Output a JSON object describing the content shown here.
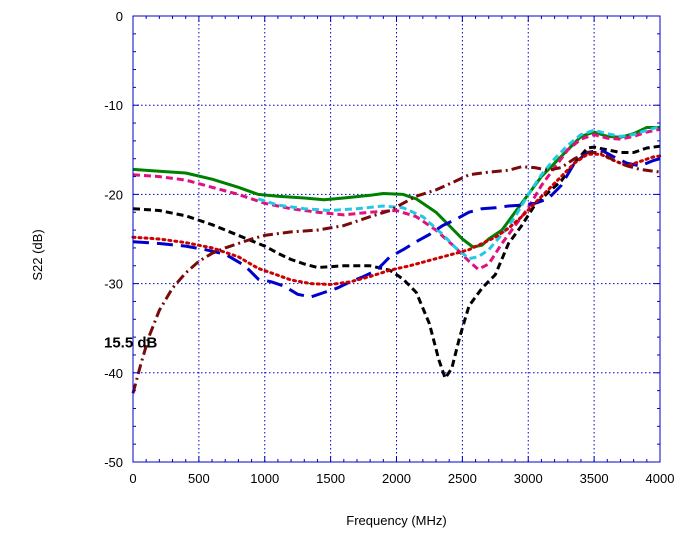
{
  "chart_data": {
    "type": "line",
    "title": "",
    "xlabel": "Frequency (MHz)",
    "ylabel": "S22 (dB)",
    "xlim": [
      0,
      4000
    ],
    "ylim": [
      -50,
      0
    ],
    "x_ticks": [
      0,
      500,
      1000,
      1500,
      2000,
      2500,
      3000,
      3500,
      4000
    ],
    "y_ticks": [
      0,
      -10,
      -20,
      -30,
      -40,
      -50
    ],
    "x_tick_labels": [
      "0",
      "500",
      "1000",
      "1500",
      "2000",
      "2500",
      "3000",
      "3500",
      "4000"
    ],
    "y_tick_labels": [
      "0",
      "-10",
      "-20",
      "-30",
      "-40",
      "-50"
    ],
    "grid": true,
    "grid_color": "#0000cc",
    "frame_color": "#0000cc",
    "annotations": [
      {
        "text": "15.5 dB",
        "x": 220,
        "y": -36.5
      }
    ],
    "series": [
      {
        "color": "#008000",
        "style": "solid",
        "points": [
          [
            0,
            -17.2
          ],
          [
            200,
            -17.4
          ],
          [
            400,
            -17.6
          ],
          [
            600,
            -18.3
          ],
          [
            800,
            -19.2
          ],
          [
            950,
            -20.0
          ],
          [
            1100,
            -20.2
          ],
          [
            1300,
            -20.4
          ],
          [
            1450,
            -20.6
          ],
          [
            1600,
            -20.4
          ],
          [
            1800,
            -20.1
          ],
          [
            1900,
            -19.9
          ],
          [
            2050,
            -20.0
          ],
          [
            2150,
            -20.5
          ],
          [
            2300,
            -22.0
          ],
          [
            2400,
            -23.5
          ],
          [
            2500,
            -25.0
          ],
          [
            2580,
            -25.9
          ],
          [
            2650,
            -25.7
          ],
          [
            2700,
            -25.0
          ],
          [
            2800,
            -24.0
          ],
          [
            2900,
            -22.0
          ],
          [
            3000,
            -20.0
          ],
          [
            3100,
            -18.0
          ],
          [
            3200,
            -16.5
          ],
          [
            3300,
            -15.0
          ],
          [
            3400,
            -13.5
          ],
          [
            3500,
            -13.0
          ],
          [
            3600,
            -13.5
          ],
          [
            3700,
            -13.6
          ],
          [
            3800,
            -13.2
          ],
          [
            3900,
            -12.5
          ],
          [
            4000,
            -12.5
          ]
        ]
      },
      {
        "color": "#e0117f",
        "style": "dashed",
        "points": [
          [
            0,
            -17.8
          ],
          [
            200,
            -18.0
          ],
          [
            400,
            -18.4
          ],
          [
            600,
            -19.2
          ],
          [
            800,
            -20.0
          ],
          [
            1000,
            -21.0
          ],
          [
            1200,
            -21.6
          ],
          [
            1400,
            -22.0
          ],
          [
            1600,
            -22.3
          ],
          [
            1800,
            -22.0
          ],
          [
            2000,
            -21.8
          ],
          [
            2150,
            -22.5
          ],
          [
            2300,
            -24.0
          ],
          [
            2450,
            -26.0
          ],
          [
            2550,
            -27.5
          ],
          [
            2620,
            -28.4
          ],
          [
            2700,
            -27.8
          ],
          [
            2800,
            -25.5
          ],
          [
            2900,
            -23.5
          ],
          [
            3000,
            -21.5
          ],
          [
            3100,
            -19.0
          ],
          [
            3200,
            -17.0
          ],
          [
            3300,
            -15.0
          ],
          [
            3400,
            -13.8
          ],
          [
            3500,
            -13.3
          ],
          [
            3600,
            -13.7
          ],
          [
            3700,
            -13.8
          ],
          [
            3800,
            -13.5
          ],
          [
            3900,
            -13.0
          ],
          [
            4000,
            -12.7
          ]
        ]
      },
      {
        "color": "#22c8e6",
        "style": "dashed",
        "points": [
          [
            950,
            -20.5
          ],
          [
            1100,
            -21.2
          ],
          [
            1300,
            -21.6
          ],
          [
            1500,
            -21.8
          ],
          [
            1700,
            -21.6
          ],
          [
            1900,
            -21.3
          ],
          [
            2050,
            -21.5
          ],
          [
            2200,
            -22.5
          ],
          [
            2350,
            -24.5
          ],
          [
            2450,
            -26.0
          ],
          [
            2550,
            -27.2
          ],
          [
            2620,
            -27.0
          ],
          [
            2700,
            -26.2
          ],
          [
            2800,
            -24.5
          ],
          [
            2900,
            -22.5
          ],
          [
            3000,
            -20.0
          ],
          [
            3100,
            -17.8
          ],
          [
            3200,
            -16.0
          ],
          [
            3300,
            -14.5
          ],
          [
            3400,
            -13.3
          ],
          [
            3500,
            -12.8
          ],
          [
            3600,
            -13.2
          ],
          [
            3700,
            -13.5
          ],
          [
            3800,
            -13.3
          ],
          [
            3900,
            -12.8
          ],
          [
            4000,
            -12.4
          ]
        ]
      },
      {
        "color": "#000000",
        "style": "dashed",
        "points": [
          [
            0,
            -21.6
          ],
          [
            200,
            -21.8
          ],
          [
            400,
            -22.4
          ],
          [
            600,
            -23.4
          ],
          [
            800,
            -24.6
          ],
          [
            900,
            -25.2
          ],
          [
            1000,
            -25.8
          ],
          [
            1100,
            -26.6
          ],
          [
            1200,
            -27.3
          ],
          [
            1300,
            -27.8
          ],
          [
            1400,
            -28.2
          ],
          [
            1600,
            -28.0
          ],
          [
            1800,
            -28.0
          ],
          [
            1950,
            -28.5
          ],
          [
            2050,
            -29.5
          ],
          [
            2150,
            -31.0
          ],
          [
            2250,
            -34.5
          ],
          [
            2320,
            -38.5
          ],
          [
            2370,
            -40.6
          ],
          [
            2420,
            -39.5
          ],
          [
            2480,
            -36.0
          ],
          [
            2550,
            -32.5
          ],
          [
            2650,
            -30.5
          ],
          [
            2750,
            -29.0
          ],
          [
            2850,
            -25.5
          ],
          [
            2950,
            -23.5
          ],
          [
            3050,
            -21.2
          ],
          [
            3150,
            -19.8
          ],
          [
            3250,
            -18.5
          ],
          [
            3350,
            -16.5
          ],
          [
            3450,
            -14.8
          ],
          [
            3500,
            -14.7
          ],
          [
            3600,
            -15.0
          ],
          [
            3700,
            -15.3
          ],
          [
            3800,
            -15.3
          ],
          [
            3900,
            -14.8
          ],
          [
            4000,
            -14.6
          ]
        ]
      },
      {
        "color": "#0000cc",
        "style": "longdash",
        "points": [
          [
            0,
            -25.3
          ],
          [
            200,
            -25.5
          ],
          [
            400,
            -25.8
          ],
          [
            550,
            -26.2
          ],
          [
            700,
            -26.7
          ],
          [
            850,
            -28.0
          ],
          [
            950,
            -29.5
          ],
          [
            1050,
            -29.8
          ],
          [
            1150,
            -30.3
          ],
          [
            1250,
            -31.2
          ],
          [
            1350,
            -31.5
          ],
          [
            1450,
            -31.0
          ],
          [
            1550,
            -30.5
          ],
          [
            1650,
            -29.8
          ],
          [
            1750,
            -29.2
          ],
          [
            1850,
            -28.5
          ],
          [
            1950,
            -27.0
          ],
          [
            2050,
            -26.2
          ],
          [
            2150,
            -25.3
          ],
          [
            2250,
            -24.5
          ],
          [
            2350,
            -23.5
          ],
          [
            2450,
            -22.8
          ],
          [
            2550,
            -22.0
          ],
          [
            2650,
            -21.6
          ],
          [
            2750,
            -21.5
          ],
          [
            2850,
            -21.3
          ],
          [
            2950,
            -21.2
          ],
          [
            3050,
            -21.0
          ],
          [
            3150,
            -20.5
          ],
          [
            3250,
            -19.0
          ],
          [
            3350,
            -16.5
          ],
          [
            3450,
            -15.3
          ],
          [
            3550,
            -15.0
          ],
          [
            3650,
            -15.8
          ],
          [
            3750,
            -16.5
          ],
          [
            3850,
            -16.8
          ],
          [
            3950,
            -16.2
          ],
          [
            4000,
            -16.0
          ]
        ]
      },
      {
        "color": "#cc0000",
        "style": "dotted",
        "points": [
          [
            0,
            -24.8
          ],
          [
            200,
            -25.0
          ],
          [
            400,
            -25.4
          ],
          [
            600,
            -26.0
          ],
          [
            800,
            -27.0
          ],
          [
            950,
            -28.3
          ],
          [
            1050,
            -28.8
          ],
          [
            1200,
            -29.6
          ],
          [
            1350,
            -30.0
          ],
          [
            1500,
            -30.1
          ],
          [
            1650,
            -29.8
          ],
          [
            1800,
            -29.2
          ],
          [
            1950,
            -28.5
          ],
          [
            2100,
            -28.0
          ],
          [
            2250,
            -27.4
          ],
          [
            2400,
            -26.8
          ],
          [
            2550,
            -26.2
          ],
          [
            2650,
            -25.5
          ],
          [
            2750,
            -24.8
          ],
          [
            2850,
            -23.8
          ],
          [
            2950,
            -22.5
          ],
          [
            3050,
            -21.0
          ],
          [
            3150,
            -19.5
          ],
          [
            3250,
            -18.0
          ],
          [
            3350,
            -16.5
          ],
          [
            3450,
            -15.5
          ],
          [
            3550,
            -15.5
          ],
          [
            3650,
            -16.2
          ],
          [
            3750,
            -16.8
          ],
          [
            3850,
            -16.3
          ],
          [
            3950,
            -15.8
          ],
          [
            4000,
            -15.7
          ]
        ]
      },
      {
        "color": "#7a0a0a",
        "style": "dashdot",
        "points": [
          [
            0,
            -42.3
          ],
          [
            60,
            -39.0
          ],
          [
            120,
            -36.0
          ],
          [
            200,
            -33.0
          ],
          [
            300,
            -30.5
          ],
          [
            400,
            -28.8
          ],
          [
            500,
            -27.5
          ],
          [
            600,
            -26.6
          ],
          [
            700,
            -26.0
          ],
          [
            800,
            -25.5
          ],
          [
            900,
            -25.0
          ],
          [
            1000,
            -24.6
          ],
          [
            1100,
            -24.4
          ],
          [
            1200,
            -24.2
          ],
          [
            1400,
            -24.0
          ],
          [
            1600,
            -23.5
          ],
          [
            1800,
            -22.5
          ],
          [
            1950,
            -21.8
          ],
          [
            2050,
            -21.0
          ],
          [
            2150,
            -20.2
          ],
          [
            2300,
            -19.5
          ],
          [
            2450,
            -18.5
          ],
          [
            2550,
            -17.8
          ],
          [
            2700,
            -17.5
          ],
          [
            2850,
            -17.3
          ],
          [
            2950,
            -16.9
          ],
          [
            3050,
            -17.0
          ],
          [
            3150,
            -17.3
          ],
          [
            3250,
            -17.0
          ],
          [
            3350,
            -16.0
          ],
          [
            3450,
            -15.3
          ],
          [
            3550,
            -15.3
          ],
          [
            3650,
            -16.2
          ],
          [
            3750,
            -16.8
          ],
          [
            3850,
            -17.2
          ],
          [
            3950,
            -17.4
          ],
          [
            4000,
            -17.5
          ]
        ]
      }
    ]
  }
}
